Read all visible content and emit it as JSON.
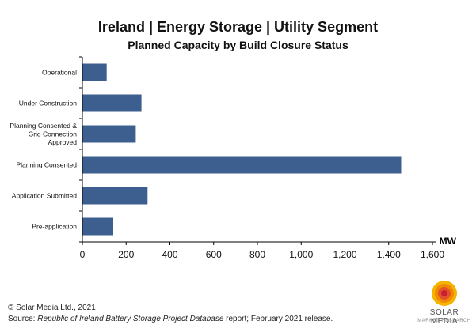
{
  "chart_data": {
    "type": "bar",
    "orientation": "horizontal",
    "title": "Ireland | Energy Storage | Utility Segment",
    "subtitle": "Planned Capacity by Build Closure Status",
    "xlabel": "",
    "ylabel": "",
    "unit_label": "MW",
    "categories": [
      "Operational",
      "Under Construction",
      "Planning Consented & Grid Connection Approved",
      "Planning Consented",
      "Application Submitted",
      "Pre-application"
    ],
    "values": [
      111,
      270,
      244,
      1457,
      298,
      141
    ],
    "xlim": [
      0,
      1600
    ],
    "xticks": [
      0,
      200,
      400,
      600,
      800,
      1000,
      1200,
      1400,
      1600
    ],
    "xtick_labels": [
      "0",
      "200",
      "400",
      "600",
      "800",
      "1,000",
      "1,200",
      "1,400",
      "1,600"
    ],
    "bar_color": "#3d5f8f",
    "grid": false,
    "legend": "none"
  },
  "footer": {
    "copyright": "© Solar Media Ltd., 2021",
    "source_prefix": "Source: ",
    "source_title": "Republic of Ireland Battery Storage Project Database",
    "source_suffix": " report; February 2021 release."
  },
  "logo": {
    "name": "SOLAR MEDIA",
    "tagline": "MARKET RESEARCH",
    "colors": [
      "#f5b400",
      "#f08a00",
      "#e4502a",
      "#c72030"
    ]
  }
}
